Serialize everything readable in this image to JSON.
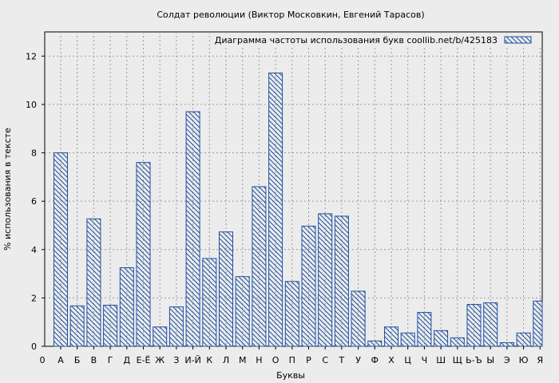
{
  "chart_data": {
    "type": "bar",
    "title": "Солдат революции (Виктор Московкин, Евгений Тарасов)",
    "xlabel": "Буквы",
    "ylabel": "% использования в тексте",
    "legend": {
      "text": "Диаграмма частоты использования букв  coollib.net/b/425183",
      "placement": "top-right"
    },
    "ylim": [
      0,
      13
    ],
    "yticks": [
      0,
      2,
      4,
      6,
      8,
      10,
      12
    ],
    "grid": true,
    "axis_start_label": "0",
    "categories": [
      "А",
      "Б",
      "В",
      "Г",
      "Д",
      "Е-Ё",
      "Ж",
      "З",
      "И-Й",
      "К",
      "Л",
      "М",
      "Н",
      "О",
      "П",
      "Р",
      "С",
      "Т",
      "У",
      "Ф",
      "Х",
      "Ц",
      "Ч",
      "Ш",
      "Щ",
      "Ь-Ъ",
      "Ы",
      "Э",
      "Ю",
      "Я"
    ],
    "values": [
      8.0,
      1.67,
      5.27,
      1.7,
      3.25,
      7.6,
      0.8,
      1.63,
      9.7,
      3.63,
      4.73,
      2.88,
      6.6,
      11.3,
      2.68,
      4.97,
      5.48,
      5.38,
      2.28,
      0.22,
      0.8,
      0.55,
      1.4,
      0.65,
      0.35,
      1.73,
      1.8,
      0.15,
      0.55,
      1.87
    ],
    "colors": {
      "bar_stroke": "#1f4fa0",
      "background": "#ececec",
      "grid": "#9a9a9a"
    }
  }
}
